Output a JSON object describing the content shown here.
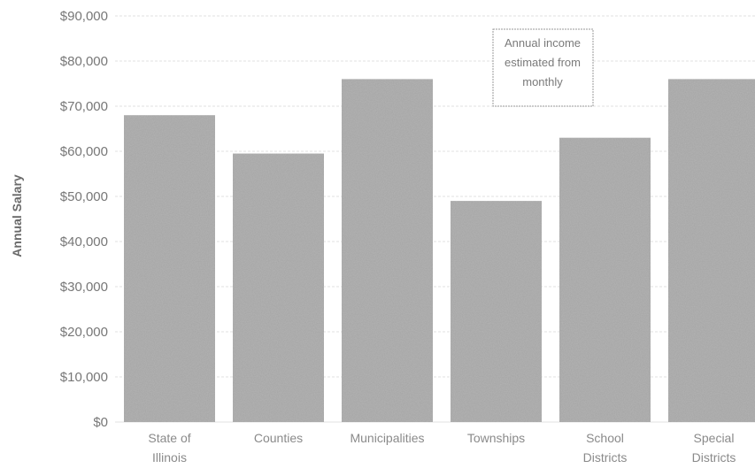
{
  "chart_data": {
    "type": "bar",
    "categories": [
      [
        "State of",
        "Illinois"
      ],
      [
        "Counties"
      ],
      [
        "Municipalities"
      ],
      [
        "Townships"
      ],
      [
        "School",
        "Districts"
      ],
      [
        "Special",
        "Districts"
      ]
    ],
    "values": [
      68000,
      59500,
      76000,
      49000,
      63000,
      76000
    ],
    "ylabel": "Annual Salary",
    "xlabel": "",
    "ylim": [
      0,
      90000
    ],
    "yticks": [
      "$0",
      "$10,000",
      "$20,000",
      "$30,000",
      "$40,000",
      "$50,000",
      "$60,000",
      "$70,000",
      "$80,000",
      "$90,000"
    ],
    "annotation": [
      "Annual income",
      "estimated from",
      "monthly"
    ],
    "grid": true,
    "colors": {
      "bar": "#b4b4b4",
      "grid": "#e2e2e2",
      "text": "#7a7a7a"
    }
  }
}
